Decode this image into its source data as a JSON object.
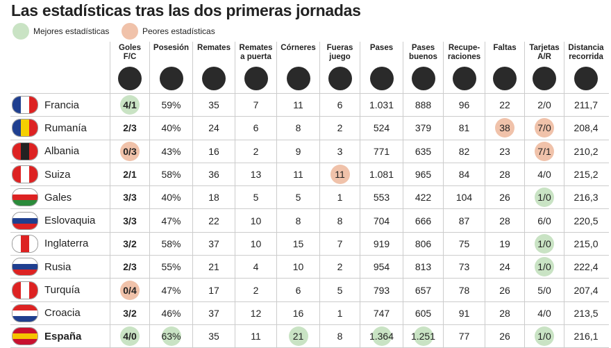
{
  "header": {
    "title": "Las estadísticas tras las dos primeras jornadas",
    "legend": {
      "good": "Mejores estadísticas",
      "bad": "Peores estadísticas"
    }
  },
  "table": {
    "columns": [
      "Goles\nF/C",
      "Posesión",
      "Remates",
      "Remates\na puerta",
      "Córneres",
      "Fueras\njuego",
      "Pases",
      "Pases\nbuenos",
      "Recupe-\nraciones",
      "Faltas",
      "Tarjetas\nA/R",
      "Distancia\nrecorrida"
    ],
    "rows": [
      {
        "team": "Francia",
        "cells": [
          "4/1",
          "59%",
          "35",
          "7",
          "11",
          "6",
          "1.031",
          "888",
          "96",
          "22",
          "2/0",
          "211,7"
        ],
        "good": [
          0
        ],
        "bad": []
      },
      {
        "team": "Rumanía",
        "cells": [
          "2/3",
          "40%",
          "24",
          "6",
          "8",
          "2",
          "524",
          "379",
          "81",
          "38",
          "7/0",
          "208,4"
        ],
        "good": [],
        "bad": [
          9,
          10
        ]
      },
      {
        "team": "Albania",
        "cells": [
          "0/3",
          "43%",
          "16",
          "2",
          "9",
          "3",
          "771",
          "635",
          "82",
          "23",
          "7/1",
          "210,2"
        ],
        "good": [],
        "bad": [
          0,
          10
        ]
      },
      {
        "team": "Suiza",
        "cells": [
          "2/1",
          "58%",
          "36",
          "13",
          "11",
          "11",
          "1.081",
          "965",
          "84",
          "28",
          "4/0",
          "215,2"
        ],
        "good": [],
        "bad": [
          5
        ]
      },
      {
        "team": "Gales",
        "cells": [
          "3/3",
          "40%",
          "18",
          "5",
          "5",
          "1",
          "553",
          "422",
          "104",
          "26",
          "1/0",
          "216,3"
        ],
        "good": [
          10
        ],
        "bad": []
      },
      {
        "team": "Eslovaquia",
        "cells": [
          "3/3",
          "47%",
          "22",
          "10",
          "8",
          "8",
          "704",
          "666",
          "87",
          "28",
          "6/0",
          "220,5"
        ],
        "good": [],
        "bad": []
      },
      {
        "team": "Inglaterra",
        "cells": [
          "3/2",
          "58%",
          "37",
          "10",
          "15",
          "7",
          "919",
          "806",
          "75",
          "19",
          "1/0",
          "215,0"
        ],
        "good": [
          10
        ],
        "bad": []
      },
      {
        "team": "Rusia",
        "cells": [
          "2/3",
          "55%",
          "21",
          "4",
          "10",
          "2",
          "954",
          "813",
          "73",
          "24",
          "1/0",
          "222,4"
        ],
        "good": [
          10
        ],
        "bad": []
      },
      {
        "team": "Turquía",
        "cells": [
          "0/4",
          "47%",
          "17",
          "2",
          "6",
          "5",
          "793",
          "657",
          "78",
          "26",
          "5/0",
          "207,4"
        ],
        "good": [],
        "bad": [
          0
        ]
      },
      {
        "team": "Croacia",
        "cells": [
          "3/2",
          "46%",
          "37",
          "12",
          "16",
          "1",
          "747",
          "605",
          "91",
          "28",
          "4/0",
          "213,5"
        ],
        "good": [],
        "bad": []
      },
      {
        "team": "España",
        "cells": [
          "4/0",
          "63%",
          "35",
          "11",
          "21",
          "8",
          "1.364",
          "1.251",
          "77",
          "26",
          "1/0",
          "216,1"
        ],
        "good": [
          0,
          1,
          4,
          6,
          7,
          10
        ],
        "bad": [],
        "bold": true
      }
    ]
  }
}
